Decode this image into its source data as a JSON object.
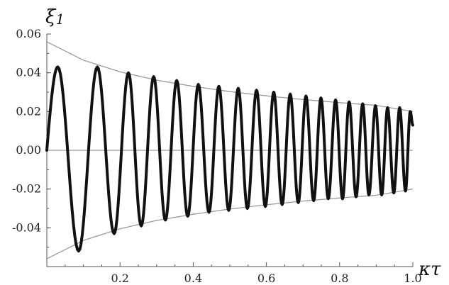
{
  "chart_data": {
    "type": "line",
    "title": "",
    "xlabel": "κτ",
    "ylabel": "ξ1",
    "ylabel_main": "ξ",
    "ylabel_sub": "1",
    "xlim": [
      0.0,
      1.0
    ],
    "ylim": [
      -0.06,
      0.06
    ],
    "xticks": [
      0.2,
      0.4,
      0.6,
      0.8,
      1.0
    ],
    "xtick_labels": [
      "0.2",
      "0.4",
      "0.6",
      "0.8",
      "1.0"
    ],
    "yticks": [
      0.06,
      0.04,
      0.02,
      0.0,
      -0.02,
      -0.04
    ],
    "ytick_labels": [
      "0.06",
      "0.04",
      "0.02",
      "0.00",
      "-0.02",
      "-0.04"
    ],
    "grid": false,
    "series": [
      {
        "role": "signal",
        "color": "#111111",
        "peaks": [
          {
            "x": 0.03,
            "y": 0.043
          },
          {
            "x": 0.087,
            "y": -0.052
          },
          {
            "x": 0.138,
            "y": 0.043
          },
          {
            "x": 0.184,
            "y": -0.043
          },
          {
            "x": 0.223,
            "y": 0.04
          },
          {
            "x": 0.258,
            "y": -0.039
          },
          {
            "x": 0.292,
            "y": 0.038
          },
          {
            "x": 0.324,
            "y": -0.036
          },
          {
            "x": 0.355,
            "y": 0.036
          },
          {
            "x": 0.385,
            "y": -0.034
          },
          {
            "x": 0.414,
            "y": 0.034
          },
          {
            "x": 0.443,
            "y": -0.032
          },
          {
            "x": 0.47,
            "y": 0.033
          },
          {
            "x": 0.497,
            "y": -0.031
          },
          {
            "x": 0.523,
            "y": 0.032
          },
          {
            "x": 0.548,
            "y": -0.03
          },
          {
            "x": 0.573,
            "y": 0.031
          },
          {
            "x": 0.597,
            "y": -0.029
          },
          {
            "x": 0.62,
            "y": 0.03
          },
          {
            "x": 0.643,
            "y": -0.028
          },
          {
            "x": 0.665,
            "y": 0.029
          },
          {
            "x": 0.687,
            "y": -0.027
          },
          {
            "x": 0.708,
            "y": 0.028
          },
          {
            "x": 0.729,
            "y": -0.026
          },
          {
            "x": 0.749,
            "y": 0.027
          },
          {
            "x": 0.769,
            "y": -0.025
          },
          {
            "x": 0.789,
            "y": 0.026
          },
          {
            "x": 0.808,
            "y": -0.025
          },
          {
            "x": 0.826,
            "y": 0.025
          },
          {
            "x": 0.845,
            "y": -0.024
          },
          {
            "x": 0.863,
            "y": 0.024
          },
          {
            "x": 0.88,
            "y": -0.023
          },
          {
            "x": 0.898,
            "y": 0.023
          },
          {
            "x": 0.915,
            "y": -0.023
          },
          {
            "x": 0.931,
            "y": 0.022
          },
          {
            "x": 0.948,
            "y": -0.022
          },
          {
            "x": 0.964,
            "y": 0.022
          },
          {
            "x": 0.98,
            "y": -0.021
          },
          {
            "x": 0.993,
            "y": 0.02
          }
        ],
        "end": {
          "x": 1.0,
          "y": 0.013
        }
      },
      {
        "role": "upper-envelope",
        "color": "#999999",
        "x": [
          0.0,
          0.1,
          0.2,
          0.3,
          0.4,
          0.5,
          0.6,
          0.7,
          0.8,
          0.9,
          1.0
        ],
        "values": [
          0.056,
          0.0465,
          0.0405,
          0.0362,
          0.033,
          0.0303,
          0.0281,
          0.0262,
          0.0246,
          0.0232,
          0.02
        ]
      },
      {
        "role": "lower-envelope",
        "color": "#999999",
        "x": [
          0.0,
          0.1,
          0.2,
          0.3,
          0.4,
          0.5,
          0.6,
          0.7,
          0.8,
          0.9,
          1.0
        ],
        "values": [
          -0.056,
          -0.0465,
          -0.0405,
          -0.0362,
          -0.033,
          -0.0303,
          -0.0281,
          -0.0262,
          -0.0246,
          -0.0232,
          -0.02
        ]
      },
      {
        "role": "zero-line",
        "color": "#999999",
        "x": [
          0.0,
          1.0
        ],
        "values": [
          0.0,
          0.0
        ]
      }
    ]
  }
}
